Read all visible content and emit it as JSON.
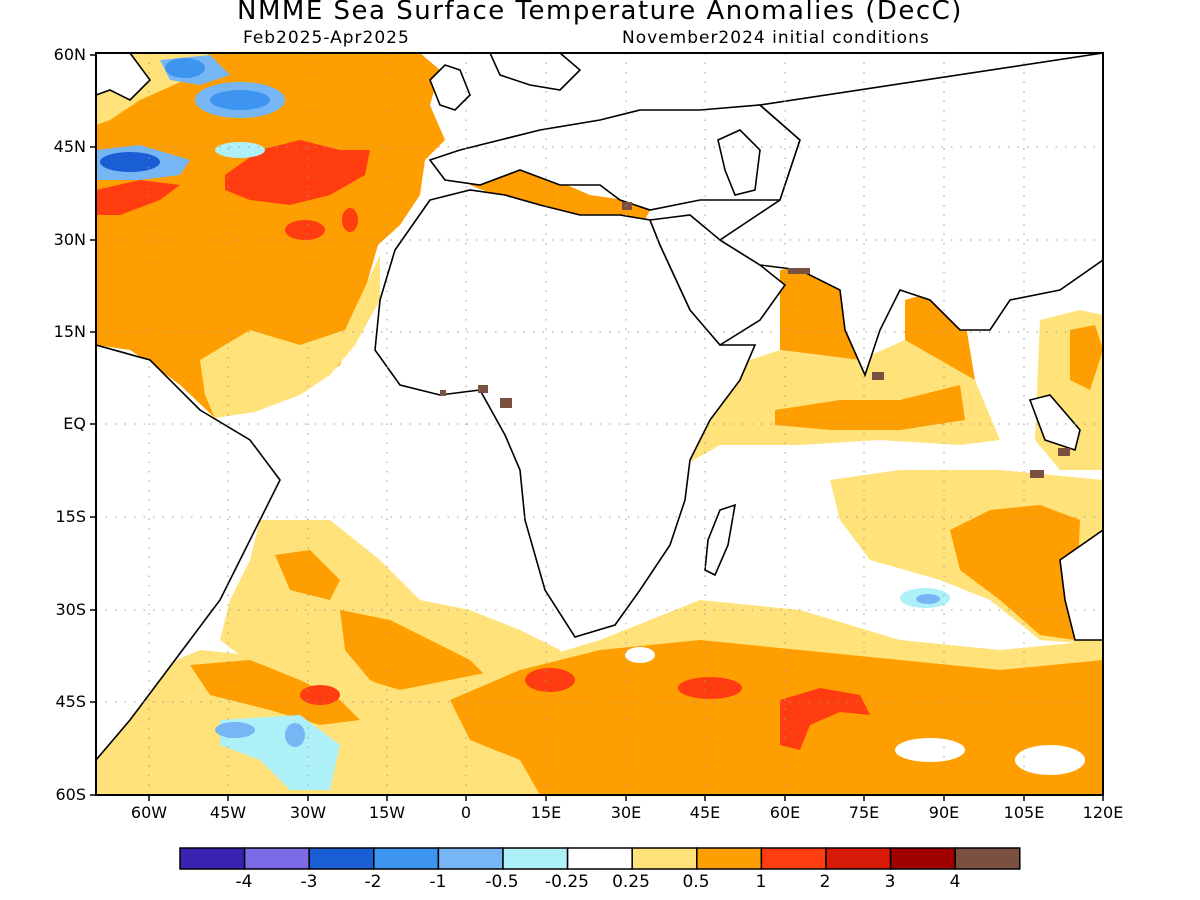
{
  "title": "NMME Sea Surface Temperature Anomalies (DecC)",
  "subtitle_left": "Feb2025-Apr2025",
  "subtitle_right": "November2024 initial conditions",
  "lat_labels": [
    "60N",
    "45N",
    "30N",
    "15N",
    "EQ",
    "15S",
    "30S",
    "45S",
    "60S"
  ],
  "lon_labels": [
    "60W",
    "45W",
    "30W",
    "15W",
    "0",
    "15E",
    "30E",
    "45E",
    "60E",
    "75E",
    "90E",
    "105E",
    "120E"
  ],
  "colorbar": {
    "colors": [
      "#3a22b3",
      "#7b6be6",
      "#1a5ed6",
      "#3d95f0",
      "#76b6f4",
      "#aef0f8",
      "#ffffff",
      "#ffe37a",
      "#ff9e00",
      "#ff3d10",
      "#d81a08",
      "#a00000",
      "#7a5040"
    ],
    "labels": [
      "-4",
      "-3",
      "-2",
      "-1",
      "-0.5",
      "-0.25",
      "0.25",
      "0.5",
      "1",
      "2",
      "3",
      "4"
    ]
  }
}
